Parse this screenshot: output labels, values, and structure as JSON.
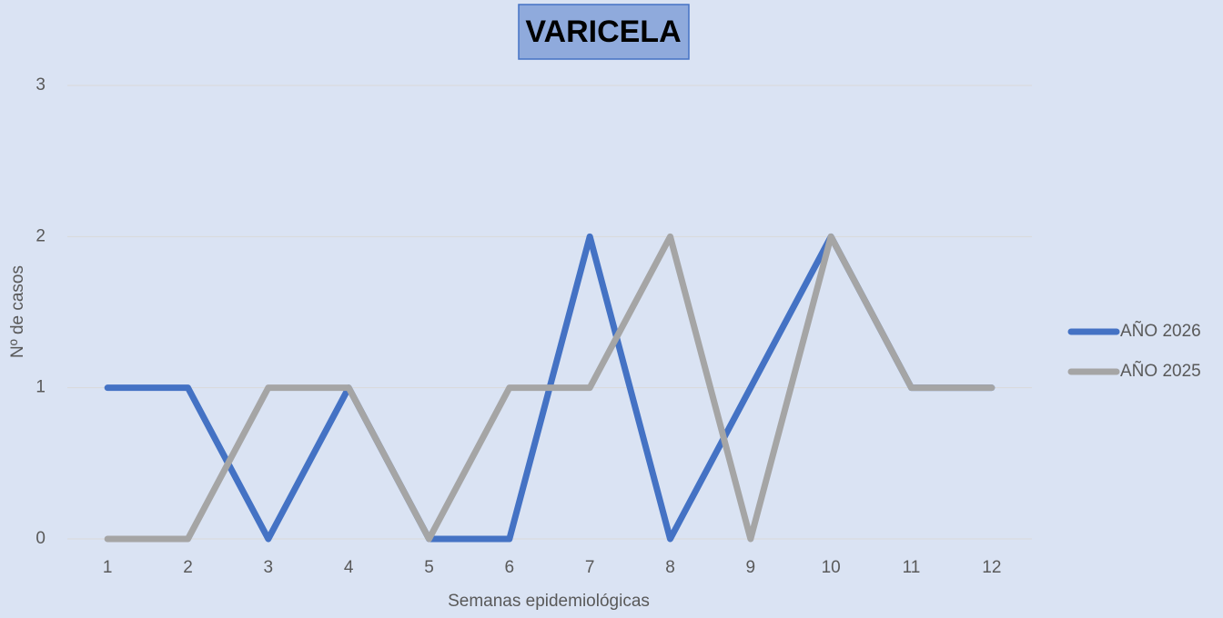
{
  "chart_data": {
    "type": "line",
    "title": "VARICELA",
    "x_label": "Semanas epidemiológicas",
    "y_label": "Nº de casos",
    "categories": [
      "1",
      "2",
      "3",
      "4",
      "5",
      "6",
      "7",
      "8",
      "9",
      "10",
      "11",
      "12"
    ],
    "series": [
      {
        "name": "AÑO 2026",
        "color": "#4472c4",
        "values": [
          1,
          1,
          0,
          1,
          0,
          0,
          2,
          0,
          1,
          2,
          1,
          1
        ]
      },
      {
        "name": "AÑO 2025",
        "color": "#a5a5a5",
        "values": [
          0,
          0,
          1,
          1,
          0,
          1,
          1,
          2,
          0,
          2,
          1,
          1
        ]
      }
    ],
    "ylim": [
      0,
      3
    ],
    "yticks": [
      0,
      1,
      2,
      3
    ],
    "grid": true,
    "legend": "right"
  }
}
